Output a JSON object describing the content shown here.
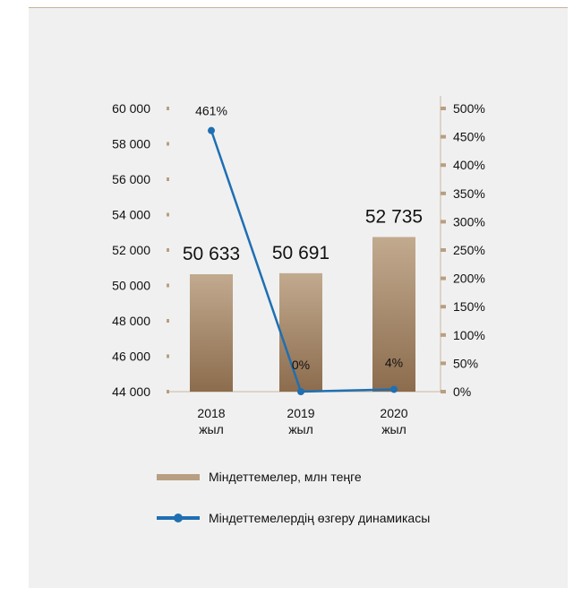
{
  "chart_data": {
    "type": "bar",
    "categories": [
      "2018\nжыл",
      "2019\nжыл",
      "2020\nжыл"
    ],
    "series": [
      {
        "name": "Міндеттемелер, млн теңге",
        "type": "bar",
        "axis": "left",
        "values": [
          50633,
          50691,
          52735
        ],
        "value_labels": [
          "50 633",
          "50 691",
          "52 735"
        ]
      },
      {
        "name": "Міндеттемелердің өзгеру динамикасы",
        "type": "line",
        "axis": "right",
        "values": [
          461,
          0,
          4
        ],
        "value_labels": [
          "461%",
          "0%",
          "4%"
        ]
      }
    ],
    "y_left": {
      "ticks": [
        44000,
        46000,
        48000,
        50000,
        52000,
        54000,
        56000,
        58000,
        60000
      ],
      "tick_labels": [
        "44 000",
        "46 000",
        "48 000",
        "50 000",
        "52 000",
        "54 000",
        "56 000",
        "58 000",
        "60 000"
      ],
      "ylim": [
        44000,
        60000
      ]
    },
    "y_right": {
      "ticks": [
        0,
        50,
        100,
        150,
        200,
        250,
        300,
        350,
        400,
        450,
        500
      ],
      "tick_labels": [
        "0%",
        "50%",
        "100%",
        "150%",
        "200%",
        "250%",
        "300%",
        "350%",
        "400%",
        "450%",
        "500%"
      ],
      "ylim": [
        0,
        500
      ]
    },
    "legend": "bottom",
    "colors": {
      "bar_top": "#c2aa8f",
      "bar_bottom": "#8c6c4d",
      "line": "#1f6fb2",
      "tick": "#b89f82"
    }
  },
  "legend": {
    "bar_label": "Міндеттемелер, млн теңге",
    "line_label": "Міндеттемелердің өзгеру динамикасы"
  }
}
